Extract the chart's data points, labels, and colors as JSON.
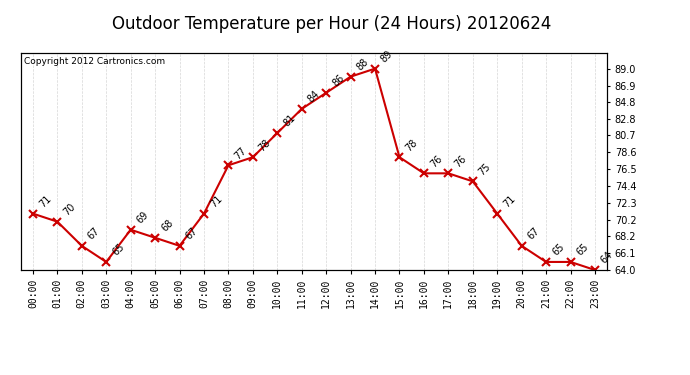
{
  "title": "Outdoor Temperature per Hour (24 Hours) 20120624",
  "copyright": "Copyright 2012 Cartronics.com",
  "hours": [
    "00:00",
    "01:00",
    "02:00",
    "03:00",
    "04:00",
    "05:00",
    "06:00",
    "07:00",
    "08:00",
    "09:00",
    "10:00",
    "11:00",
    "12:00",
    "13:00",
    "14:00",
    "15:00",
    "16:00",
    "17:00",
    "18:00",
    "19:00",
    "20:00",
    "21:00",
    "22:00",
    "23:00"
  ],
  "temperatures": [
    71,
    70,
    67,
    65,
    69,
    68,
    67,
    71,
    77,
    78,
    81,
    84,
    86,
    88,
    89,
    78,
    76,
    76,
    75,
    71,
    67,
    65,
    65,
    64
  ],
  "line_color": "#cc0000",
  "marker": "x",
  "marker_color": "#cc0000",
  "bg_color": "#ffffff",
  "grid_color": "#cccccc",
  "ylim": [
    64.0,
    91.0
  ],
  "right_yticks": [
    64.0,
    66.1,
    68.2,
    70.2,
    72.3,
    74.4,
    76.5,
    78.6,
    80.7,
    82.8,
    84.8,
    86.9,
    89.0
  ],
  "title_fontsize": 12,
  "label_fontsize": 7,
  "annotation_fontsize": 7,
  "copyright_fontsize": 6.5
}
